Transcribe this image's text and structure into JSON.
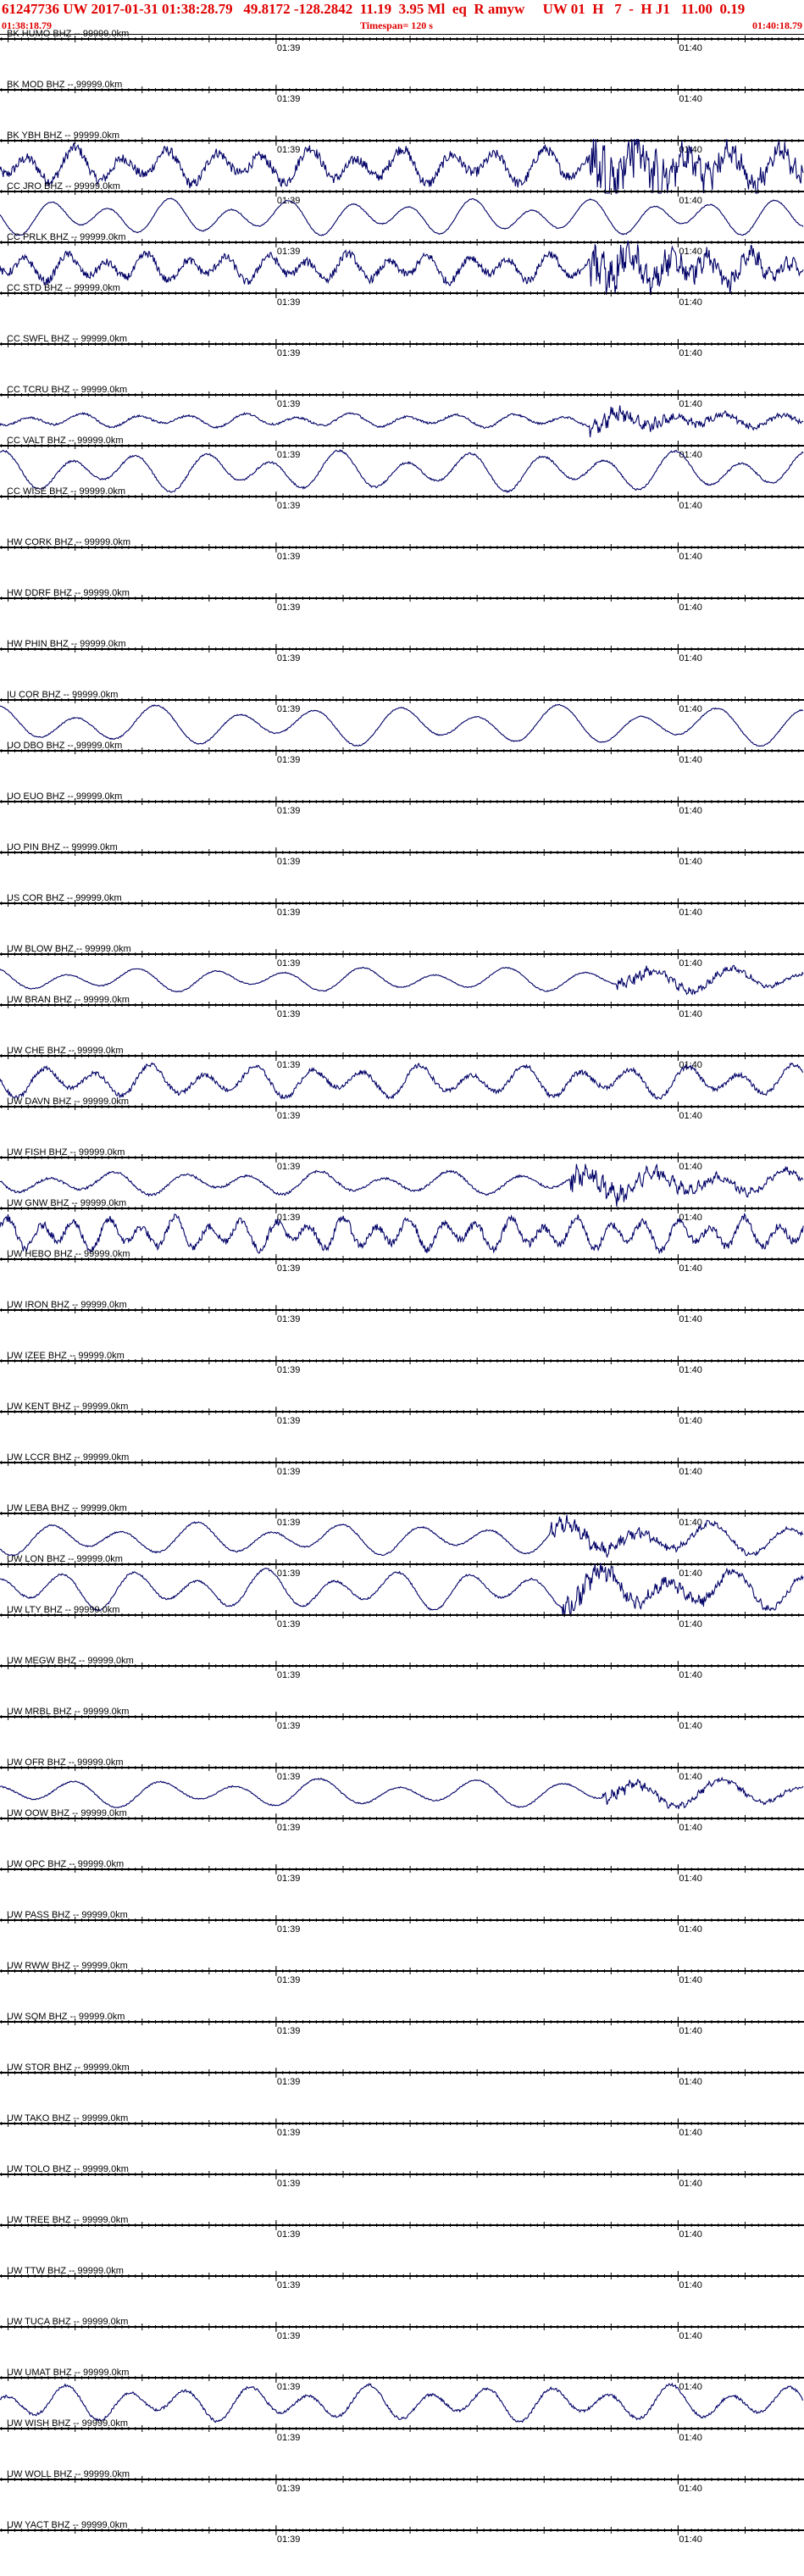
{
  "header": {
    "title": "61247736 UW 2017-01-31 01:38:28.79   49.8172 -128.2842  11.19  3.95 Ml  eq  R amyw     UW 01  H   7  -  H J1   11.00  0.19",
    "start_time": "01:38:18.79",
    "end_time": "01:40:18.79",
    "timespan": "Timespan= 120 s"
  },
  "chart_data": {
    "type": "line",
    "title": "",
    "xlabel": "",
    "ylabel": "",
    "x_unit": "seconds after 01:38:18.79",
    "xlim": [
      0,
      120
    ],
    "tick_labels": [
      {
        "t": 41.21,
        "label": "01:39"
      },
      {
        "t": 101.21,
        "label": "01:40"
      }
    ],
    "trace_color": "#000066",
    "axis_color": "#000000",
    "label_suffix": " -- 99999.0km",
    "stations": [
      {
        "name": "BK HUMO BHZ",
        "active": false
      },
      {
        "name": "BK MOD BHZ",
        "active": false
      },
      {
        "name": "BK YBH BHZ",
        "active": true,
        "amp": 0.9,
        "period": 7,
        "noise": 0.3,
        "burst": 88,
        "burst_amp": 1.6
      },
      {
        "name": "CC JRO BHZ",
        "active": true,
        "amp": 0.9,
        "period": 9,
        "noise": 0.03
      },
      {
        "name": "CC PRLK BHZ",
        "active": true,
        "amp": 0.7,
        "period": 6,
        "noise": 0.3,
        "burst": 88,
        "burst_amp": 1.4
      },
      {
        "name": "CC STD BHZ",
        "active": false
      },
      {
        "name": "CC SWFL BHZ",
        "active": false
      },
      {
        "name": "CC TCRU BHZ",
        "active": true,
        "amp": 0.35,
        "period": 8,
        "noise": 0.15,
        "burst": 88,
        "burst_amp": 1.2
      },
      {
        "name": "CC VALT BHZ",
        "active": true,
        "amp": 1.0,
        "period": 10,
        "noise": 0.05
      },
      {
        "name": "CC WISE BHZ",
        "active": false
      },
      {
        "name": "HW CORK BHZ",
        "active": false
      },
      {
        "name": "HW DDRF BHZ",
        "active": false
      },
      {
        "name": "HW PHIN BHZ",
        "active": false
      },
      {
        "name": "IU COR BHZ",
        "active": true,
        "amp": 1.0,
        "period": 12,
        "noise": 0.03
      },
      {
        "name": "UO DBO BHZ",
        "active": false
      },
      {
        "name": "UO EUO BHZ",
        "active": false
      },
      {
        "name": "UO PIN BHZ",
        "active": false
      },
      {
        "name": "US COR BHZ",
        "active": false
      },
      {
        "name": "UW BLOW BHZ",
        "active": true,
        "amp": 0.6,
        "period": 11,
        "noise": 0.05,
        "burst": 92,
        "burst_amp": 0.5
      },
      {
        "name": "UW BRAN BHZ",
        "active": false
      },
      {
        "name": "UW CHE BHZ",
        "active": true,
        "amp": 0.8,
        "period": 8,
        "noise": 0.15
      },
      {
        "name": "UW DAVN BHZ",
        "active": false
      },
      {
        "name": "UW FISH BHZ",
        "active": true,
        "amp": 0.6,
        "period": 10,
        "noise": 0.1,
        "burst": 85,
        "burst_amp": 1.0
      },
      {
        "name": "UW GNW BHZ",
        "active": true,
        "amp": 0.8,
        "period": 5,
        "noise": 0.25
      },
      {
        "name": "UW HEBO BHZ",
        "active": false
      },
      {
        "name": "UW IRON BHZ",
        "active": false
      },
      {
        "name": "UW IZEE BHZ",
        "active": false
      },
      {
        "name": "UW KENT BHZ",
        "active": false
      },
      {
        "name": "UW LCCR BHZ",
        "active": false
      },
      {
        "name": "UW LEBA BHZ",
        "active": true,
        "amp": 0.8,
        "period": 11,
        "noise": 0.05,
        "burst": 82,
        "burst_amp": 0.5
      },
      {
        "name": "UW LON BHZ",
        "active": true,
        "amp": 1.0,
        "period": 10,
        "noise": 0.05,
        "burst": 84,
        "burst_amp": 0.6
      },
      {
        "name": "UW LTY BHZ",
        "active": false
      },
      {
        "name": "UW MEGW BHZ",
        "active": false
      },
      {
        "name": "UW MRBL BHZ",
        "active": false
      },
      {
        "name": "UW OFR BHZ",
        "active": true,
        "amp": 0.7,
        "period": 12,
        "noise": 0.05,
        "burst": 90,
        "burst_amp": 0.4
      },
      {
        "name": "UW OOW BHZ",
        "active": false
      },
      {
        "name": "UW OPC BHZ",
        "active": false
      },
      {
        "name": "UW PASS BHZ",
        "active": false
      },
      {
        "name": "UW RWW BHZ",
        "active": false
      },
      {
        "name": "UW SQM BHZ",
        "active": false
      },
      {
        "name": "UW STOR BHZ",
        "active": false
      },
      {
        "name": "UW TAKO BHZ",
        "active": false
      },
      {
        "name": "UW TOLO BHZ",
        "active": false
      },
      {
        "name": "UW TREE BHZ",
        "active": false
      },
      {
        "name": "UW TTW BHZ",
        "active": false
      },
      {
        "name": "UW TUCA BHZ",
        "active": false
      },
      {
        "name": "UW UMAT BHZ",
        "active": true,
        "amp": 0.9,
        "period": 9,
        "noise": 0.08
      },
      {
        "name": "UW WISH BHZ",
        "active": false
      },
      {
        "name": "UW WOLL BHZ",
        "active": false
      },
      {
        "name": "UW YACT BHZ",
        "active": false
      }
    ]
  }
}
